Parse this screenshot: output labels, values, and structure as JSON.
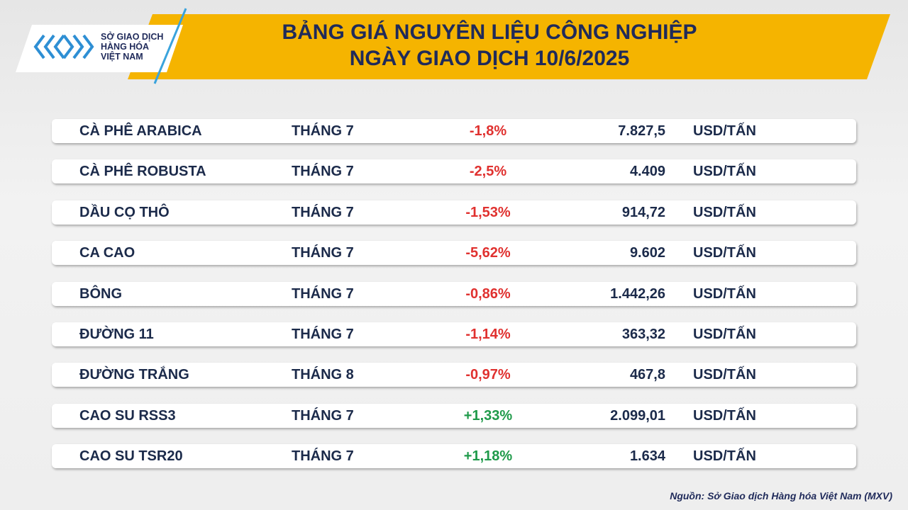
{
  "header": {
    "logo_lines": [
      "SỞ GIAO DỊCH",
      "HÀNG HÓA",
      "VIỆT NAM"
    ],
    "title_lines": [
      "BẢNG GIÁ NGUYÊN LIỆU CÔNG NGHIỆP",
      "NGÀY GIAO DỊCH 10/6/2025"
    ]
  },
  "table": {
    "rows": [
      [
        "CÀ PHÊ ARABICA",
        "THÁNG 7",
        "-1,8%",
        "7.827,5",
        "USD/TẤN"
      ],
      [
        "CÀ PHÊ ROBUSTA",
        "THÁNG 7",
        "-2,5%",
        "4.409",
        "USD/TẤN"
      ],
      [
        "DẦU CỌ THÔ",
        "THÁNG 7",
        "-1,53%",
        "914,72",
        "USD/TẤN"
      ],
      [
        "CA CAO",
        "THÁNG 7",
        "-5,62%",
        "9.602",
        "USD/TẤN"
      ],
      [
        "BÔNG",
        "THÁNG 7",
        "-0,86%",
        "1.442,26",
        "USD/TẤN"
      ],
      [
        "ĐƯỜNG 11",
        "THÁNG 7",
        "-1,14%",
        "363,32",
        "USD/TẤN"
      ],
      [
        "ĐƯỜNG TRẮNG",
        "THÁNG 8",
        "-0,97%",
        "467,8",
        "USD/TẤN"
      ],
      [
        "CAO SU RSS3",
        "THÁNG 7",
        "+1,33%",
        "2.099,01",
        "USD/TẤN"
      ],
      [
        "CAO SU TSR20",
        "THÁNG 7",
        "+1,18%",
        "1.634",
        "USD/TẤN"
      ]
    ]
  },
  "footer": {
    "source": "Nguồn: Sở Giao dịch Hàng hóa Việt Nam (MXV)"
  }
}
